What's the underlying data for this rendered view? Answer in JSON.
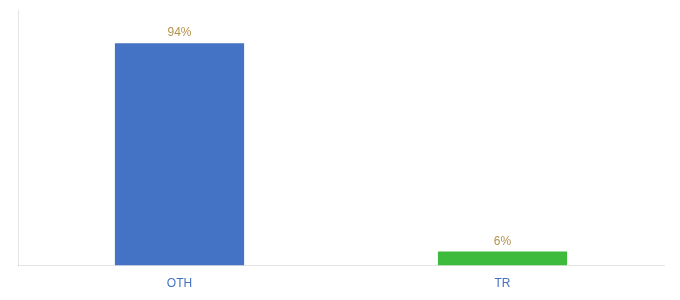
{
  "chart_data": {
    "type": "bar",
    "categories": [
      "OTH",
      "TR"
    ],
    "values": [
      94,
      6
    ],
    "value_labels": [
      "94%",
      "6%"
    ],
    "colors": [
      "#4472c4",
      "#3dbb3d"
    ],
    "ylim": [
      0,
      108
    ],
    "grid": false,
    "data_labels": true,
    "tick_labels": "x"
  }
}
